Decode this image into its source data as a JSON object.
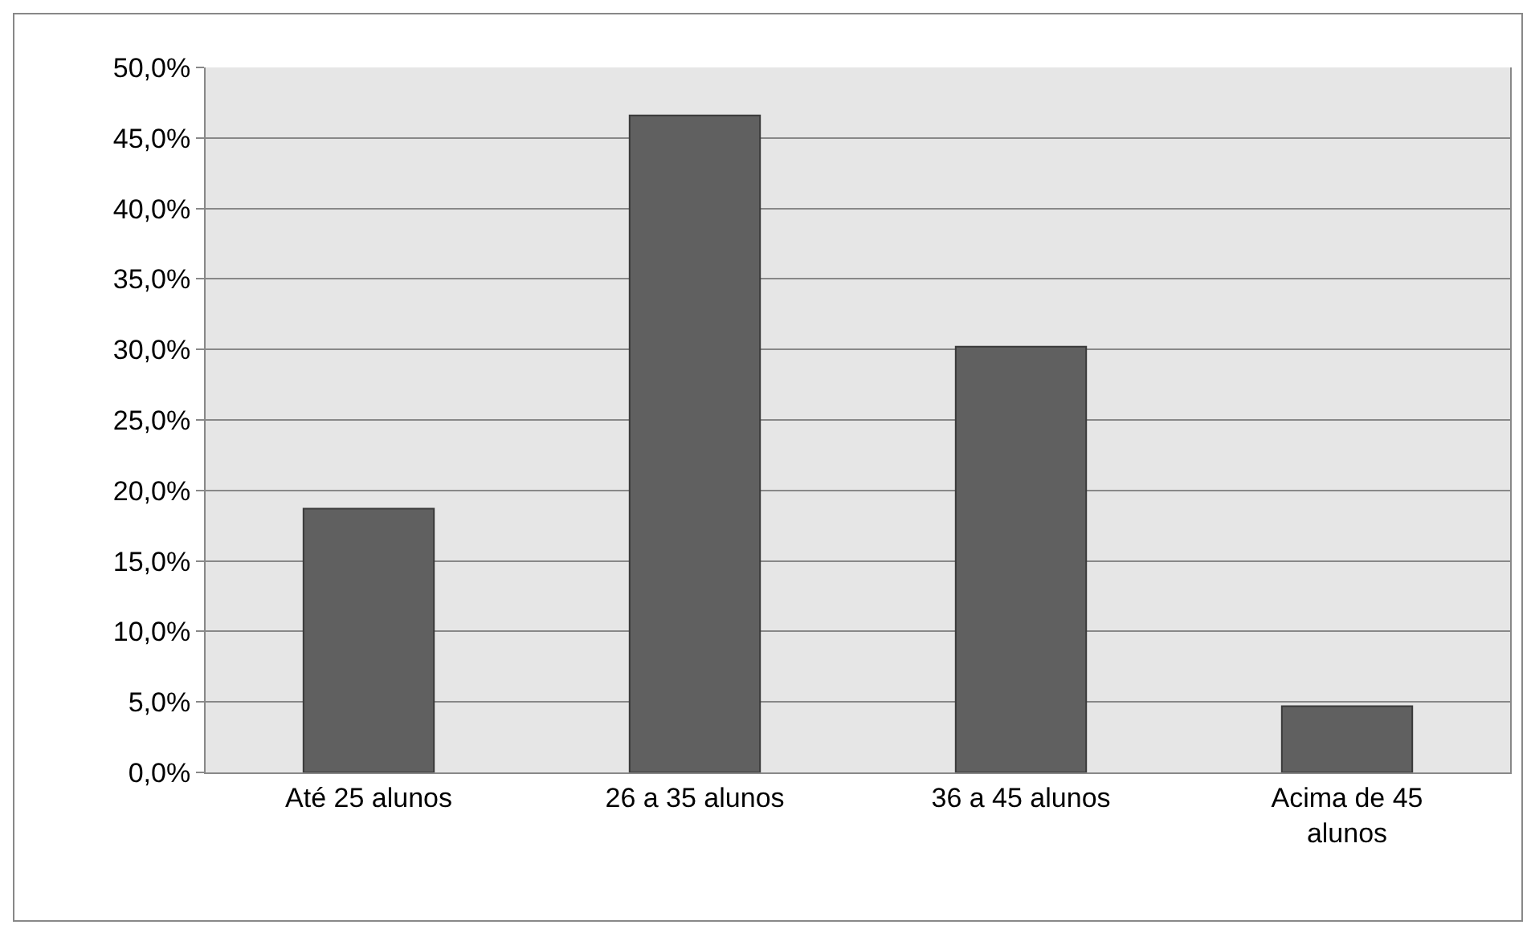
{
  "chart_data": {
    "type": "bar",
    "categories": [
      "Até 25 alunos",
      "26 a 35 alunos",
      "36 a 45 alunos",
      "Acima de 45 alunos"
    ],
    "values": [
      18.7,
      46.6,
      30.2,
      4.7
    ],
    "color": "#606060",
    "ylim": [
      0,
      50
    ],
    "yticks": [
      {
        "value": 0,
        "label": "0,0%"
      },
      {
        "value": 5,
        "label": "5,0%"
      },
      {
        "value": 10,
        "label": "10,0%"
      },
      {
        "value": 15,
        "label": "15,0%"
      },
      {
        "value": 20,
        "label": "20,0%"
      },
      {
        "value": 25,
        "label": "25,0%"
      },
      {
        "value": 30,
        "label": "30,0%"
      },
      {
        "value": 35,
        "label": "35,0%"
      },
      {
        "value": 40,
        "label": "40,0%"
      },
      {
        "value": 45,
        "label": "45,0%"
      },
      {
        "value": 50,
        "label": "50,0%"
      }
    ],
    "grid": "y"
  }
}
